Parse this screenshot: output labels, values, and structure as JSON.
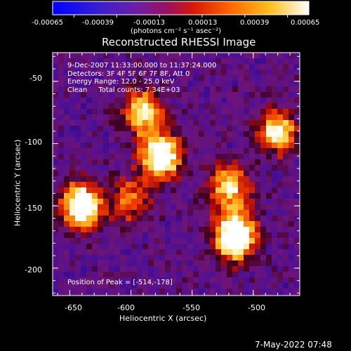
{
  "colorbar": {
    "tick_labels": [
      "-0.00065",
      "-0.00039",
      "-0.00013",
      "0.00013",
      "0.00039",
      "0.00065"
    ],
    "unit_label": "(photons cm⁻² s⁻¹ asec⁻²)",
    "range": [
      -0.00065,
      0.00065
    ],
    "colormap": "rainbow-heat (blue-purple-red-orange-yellow-white)"
  },
  "chart_data": {
    "type": "heatmap",
    "title": "Reconstructed RHESSI Image",
    "xlabel": "Heliocentric X (arcsec)",
    "ylabel": "Heliocentric Y (arcsec)",
    "xlim": [
      -664,
      -462
    ],
    "ylim": [
      -222,
      -27
    ],
    "x_ticks": [
      -650,
      -600,
      -550,
      -500
    ],
    "y_ticks": [
      -50,
      -100,
      -150,
      -200
    ],
    "peak": [
      -514,
      -178
    ],
    "bright_regions": [
      {
        "x": -575,
        "y": -110,
        "level": "high"
      },
      {
        "x": -590,
        "y": -75,
        "level": "medium"
      },
      {
        "x": -640,
        "y": -150,
        "level": "high"
      },
      {
        "x": -515,
        "y": -175,
        "level": "peak"
      },
      {
        "x": -480,
        "y": -90,
        "level": "medium"
      },
      {
        "x": -520,
        "y": -135,
        "level": "medium"
      },
      {
        "x": -600,
        "y": -145,
        "level": "low"
      }
    ]
  },
  "overlay": {
    "time_range": "9-Dec-2007 11:33:00.000 to 11:37:24.000",
    "detectors": "Detectors: 3F 4F 5F 6F 7F 8F, Att 0",
    "energy": "Energy Range: 12.0 - 25.0 keV",
    "clean_counts": "Clean     Total counts: 7.34E+03",
    "peak_text": "Position of Peak = [-514,-178]"
  },
  "footer": {
    "timestamp": "7-May-2022 07:48"
  }
}
